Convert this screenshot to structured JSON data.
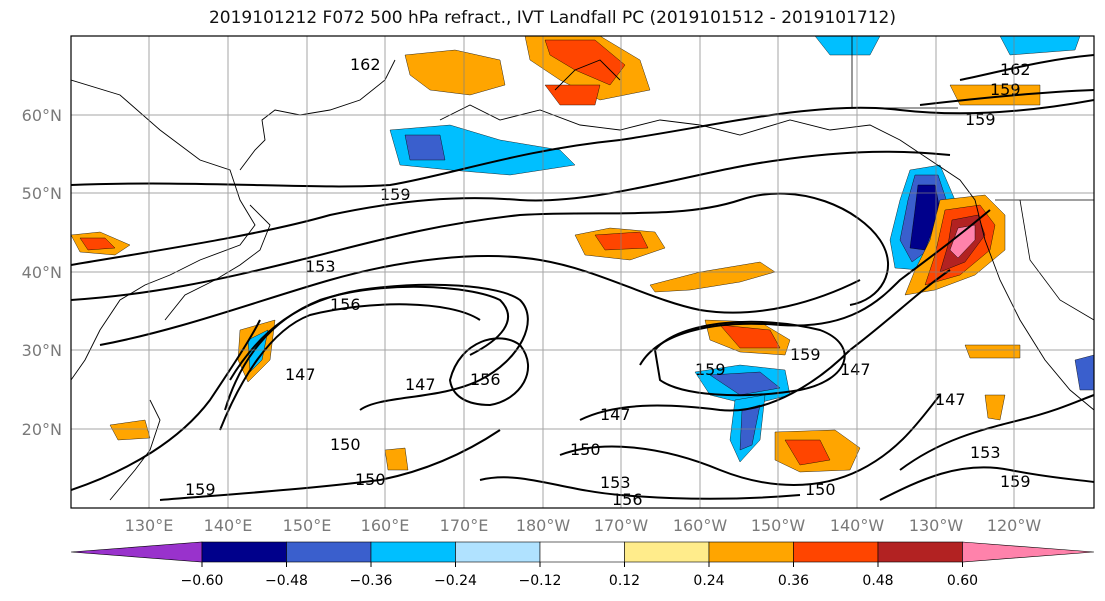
{
  "map": {
    "title": "2019101212 F072 500 hPa refract., IVT Landfall PC (2019101512 - 2019101712)",
    "lat_labels": [
      "60°N",
      "50°N",
      "40°N",
      "30°N",
      "20°N"
    ],
    "lon_labels": [
      "130°E",
      "140°E",
      "150°E",
      "160°E",
      "170°E",
      "180°W",
      "170°W",
      "160°W",
      "150°W",
      "140°W",
      "130°W",
      "120°W"
    ],
    "contour_labels": [
      "162",
      "159",
      "153",
      "156",
      "147",
      "150"
    ],
    "colorbar": {
      "ticks": [
        "−0.60",
        "−0.48",
        "−0.36",
        "−0.24",
        "−0.12",
        "0.12",
        "0.24",
        "0.36",
        "0.48",
        "0.60"
      ],
      "colors": [
        "#9932cc",
        "#00008b",
        "#3a5fcd",
        "#00bfff",
        "#b0e2ff",
        "#ffffff",
        "#ffec8b",
        "#ffa500",
        "#ff4500",
        "#b22222",
        "#ff82ab"
      ]
    }
  }
}
